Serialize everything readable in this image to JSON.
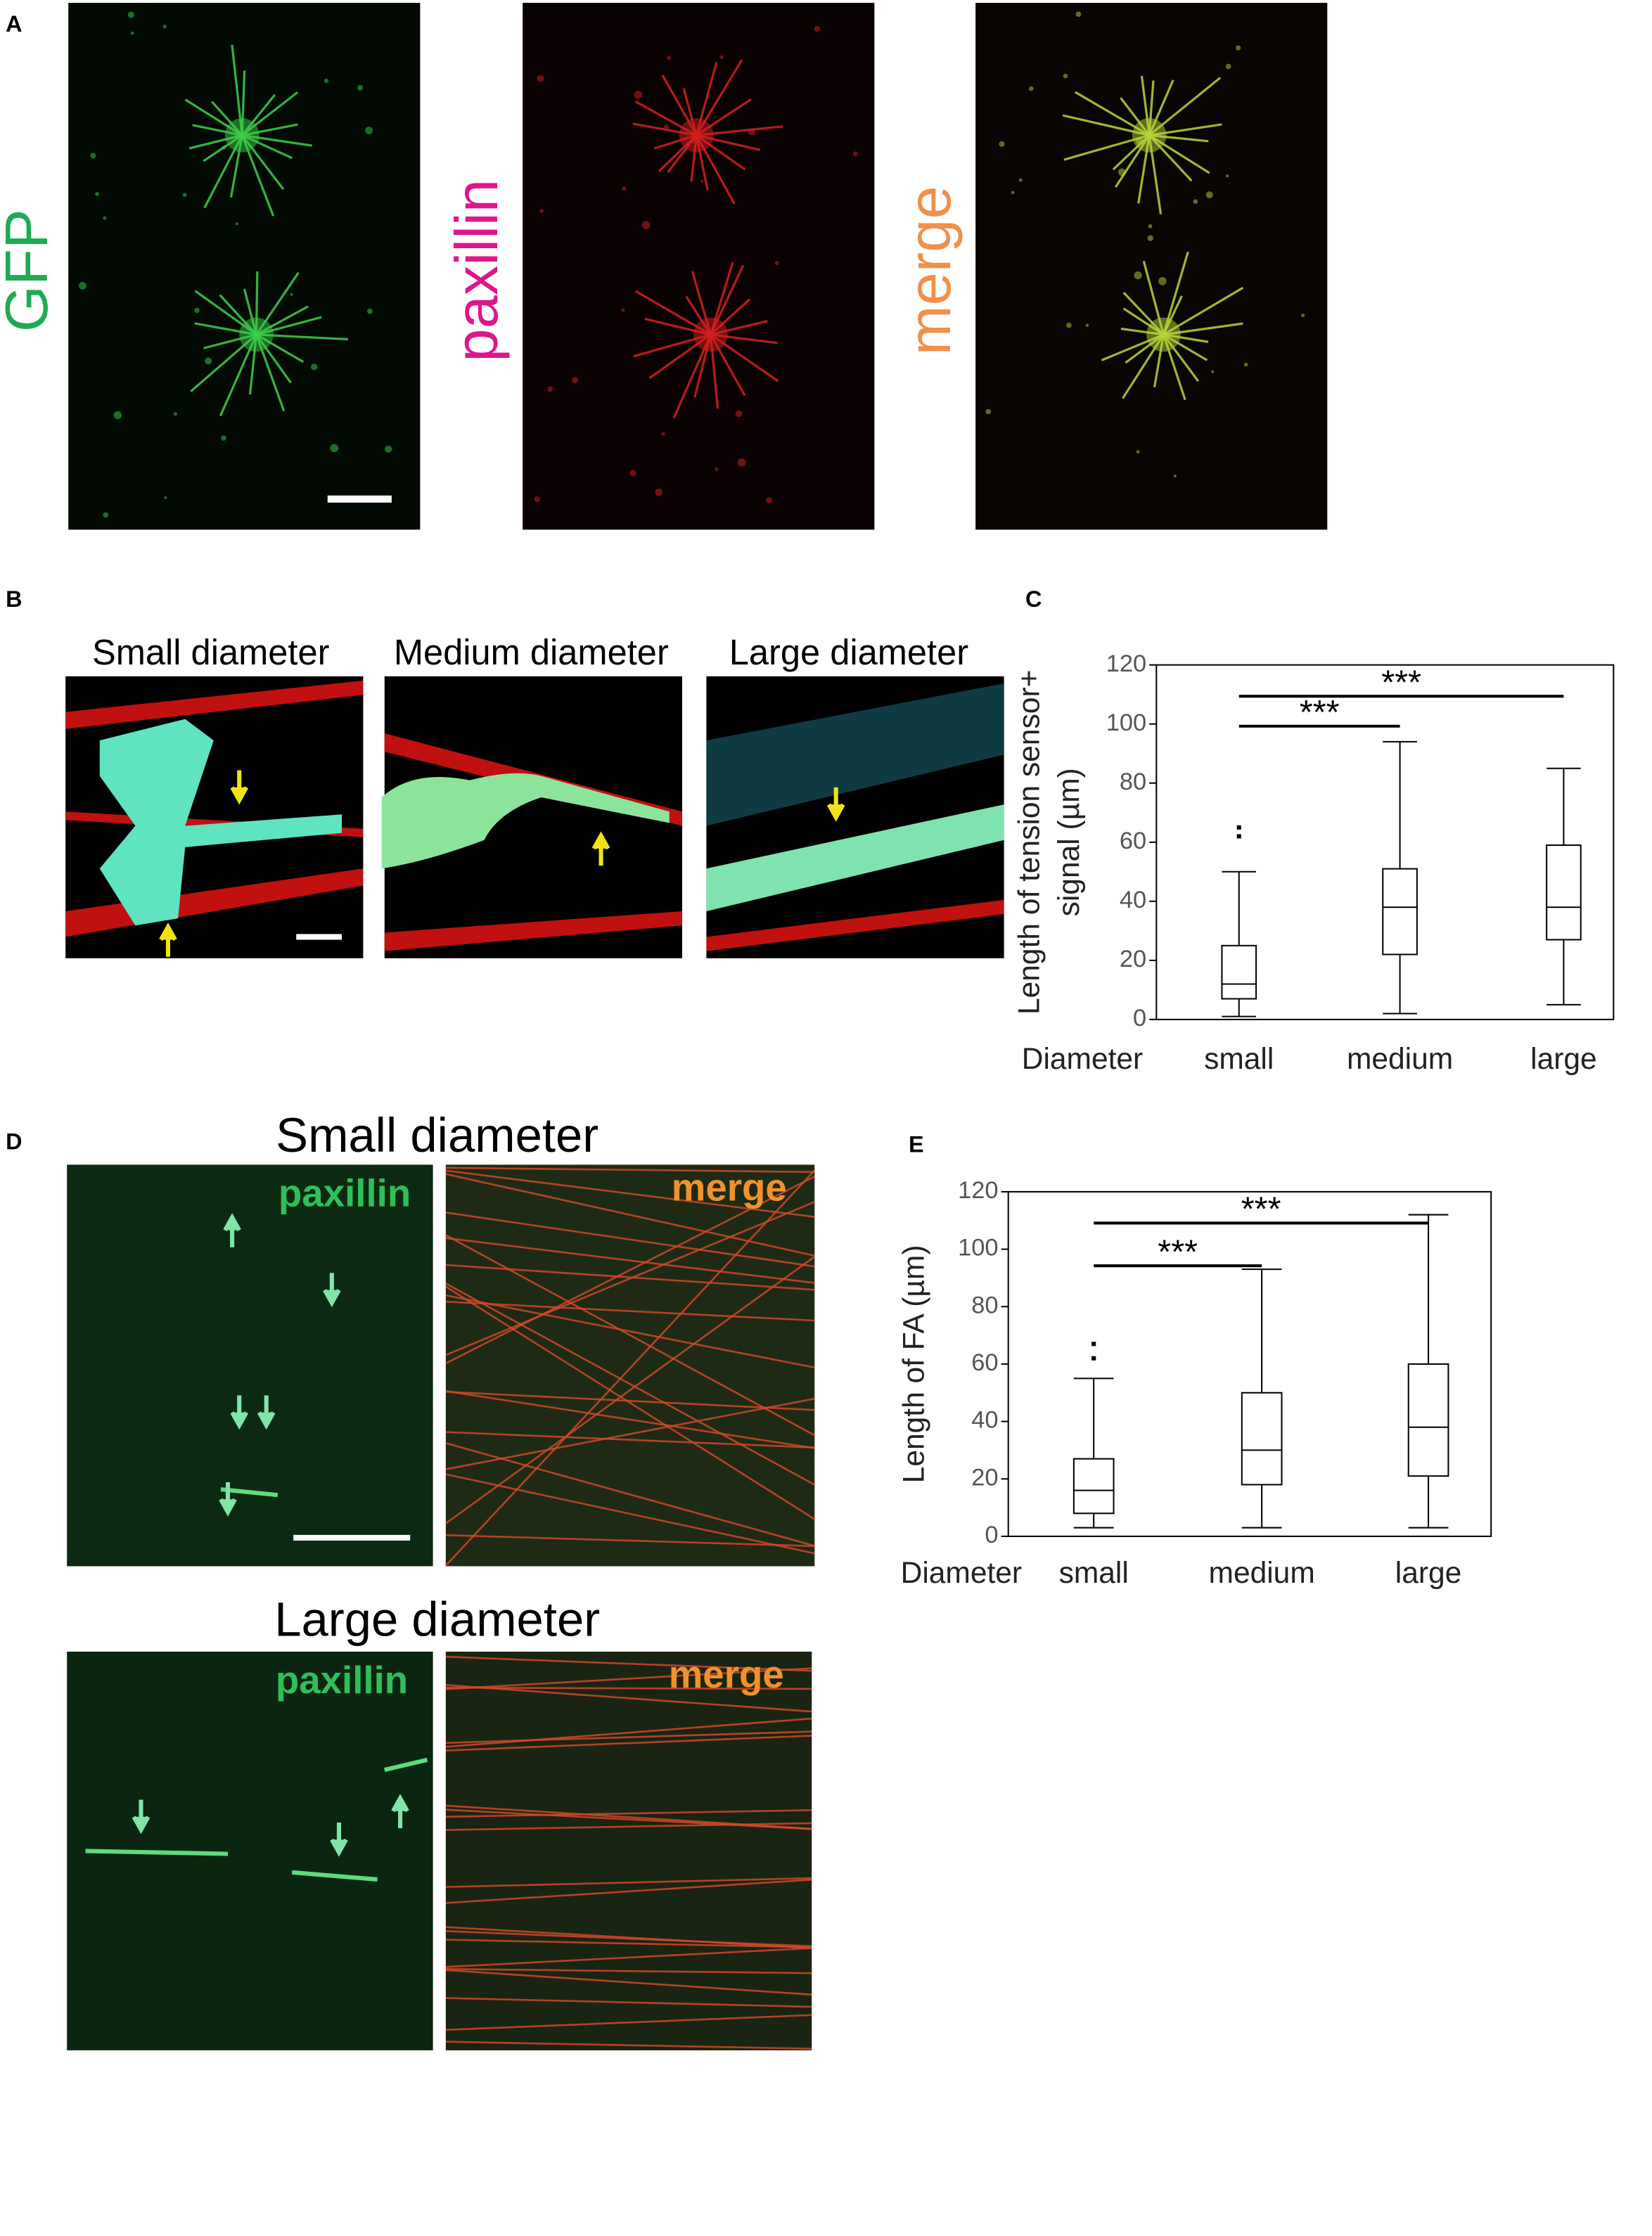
{
  "panel_labels": [
    "A",
    "B",
    "C",
    "D",
    "E"
  ],
  "panel_a": {
    "channels": [
      "GFP",
      "paxillin",
      "merge"
    ]
  },
  "panel_b": {
    "titles": [
      "Small diameter",
      "Medium diameter",
      "Large diameter"
    ]
  },
  "panel_d": {
    "rows": [
      {
        "title": "Small diameter",
        "labels": [
          "paxillin",
          "merge"
        ]
      },
      {
        "title": "Large diameter",
        "labels": [
          "paxillin",
          "merge"
        ]
      }
    ]
  },
  "chart_data": [
    {
      "type": "box",
      "y_label": [
        "Length of tension sensor+",
        "signal (µm)"
      ],
      "x_label": "Diameter",
      "categories": [
        "small",
        "medium",
        "large"
      ],
      "ylim": [
        0,
        120
      ],
      "yticks": [
        0,
        20,
        40,
        60,
        80,
        100,
        120
      ],
      "boxes": [
        {
          "min": 1,
          "q1": 7,
          "median": 12,
          "q3": 25,
          "max": 50,
          "outliers": [
            62,
            65
          ]
        },
        {
          "min": 2,
          "q1": 22,
          "median": 38,
          "q3": 51,
          "max": 94
        },
        {
          "min": 5,
          "q1": 27,
          "median": 38,
          "q3": 59,
          "max": 85
        }
      ],
      "significance": [
        "***",
        "***"
      ],
      "color": "#000000"
    },
    {
      "type": "box",
      "y_label": [
        "Length of FA (µm)"
      ],
      "x_label": "Diameter",
      "categories": [
        "small",
        "medium",
        "large"
      ],
      "ylim": [
        0,
        120
      ],
      "yticks": [
        0,
        20,
        40,
        60,
        80,
        100,
        120
      ],
      "boxes": [
        {
          "min": 3,
          "q1": 8,
          "median": 16,
          "q3": 27,
          "max": 55,
          "outliers": [
            62,
            67
          ]
        },
        {
          "min": 3,
          "q1": 18,
          "median": 30,
          "q3": 50,
          "max": 93
        },
        {
          "min": 3,
          "q1": 21,
          "median": 38,
          "q3": 60,
          "max": 112
        }
      ],
      "significance": [
        "***",
        "***"
      ],
      "color": "#000000"
    }
  ]
}
